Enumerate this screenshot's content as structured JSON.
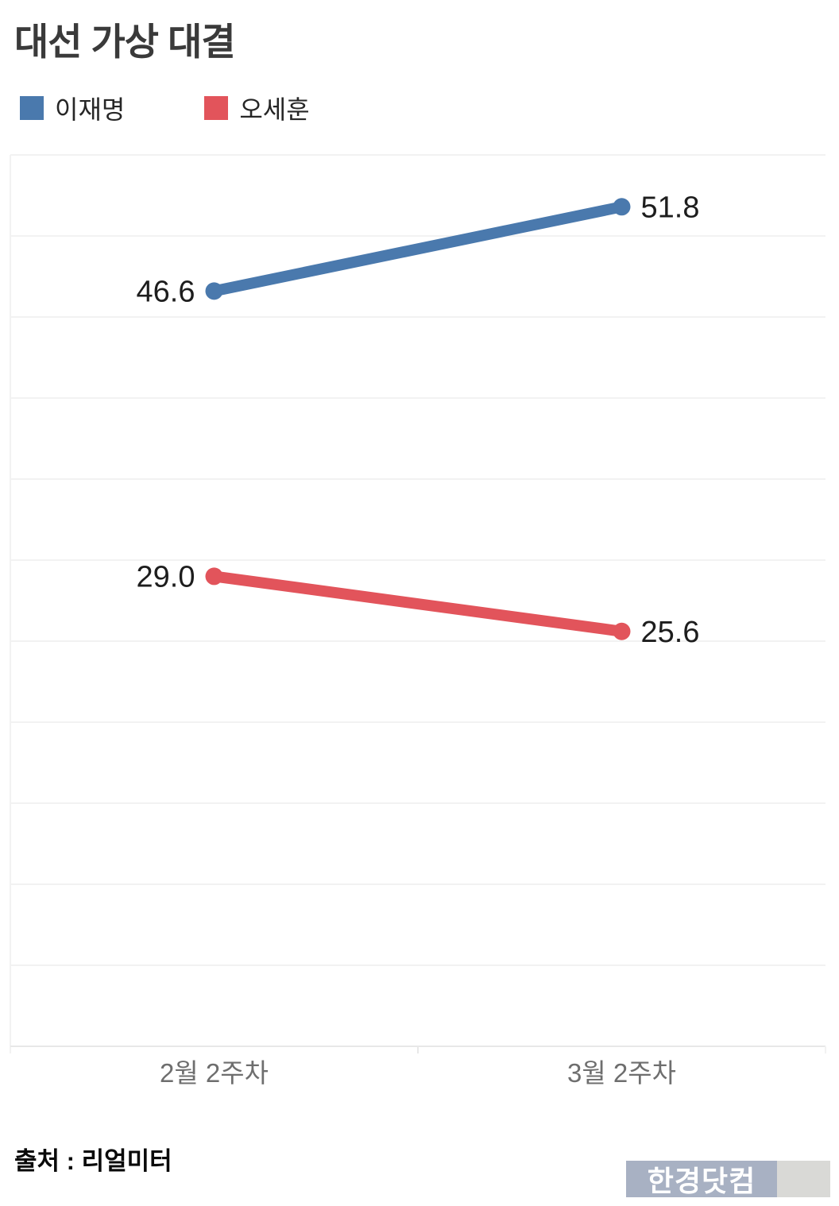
{
  "chart_data": {
    "type": "line",
    "title": "대선 가상 대결",
    "categories": [
      "2월 2주차",
      "3월 2주차"
    ],
    "series": [
      {
        "name": "이재명",
        "color": "#4a79ad",
        "values": [
          46.6,
          51.8
        ]
      },
      {
        "name": "오세훈",
        "color": "#e2545b",
        "values": [
          29.0,
          25.6
        ]
      }
    ],
    "ylim": [
      0,
      55
    ],
    "grid_step": 5,
    "grid": true,
    "legend_position": "top-left",
    "value_label_decimals": 1,
    "colors": {
      "gridline": "#f2f2f2",
      "axis": "#e8e8e8",
      "value_label": "#1d1d1d",
      "x_axis_label": "#6e6e6e"
    }
  },
  "footer": {
    "source": "출처 : 리얼미터",
    "logo": "한경닷컴"
  }
}
